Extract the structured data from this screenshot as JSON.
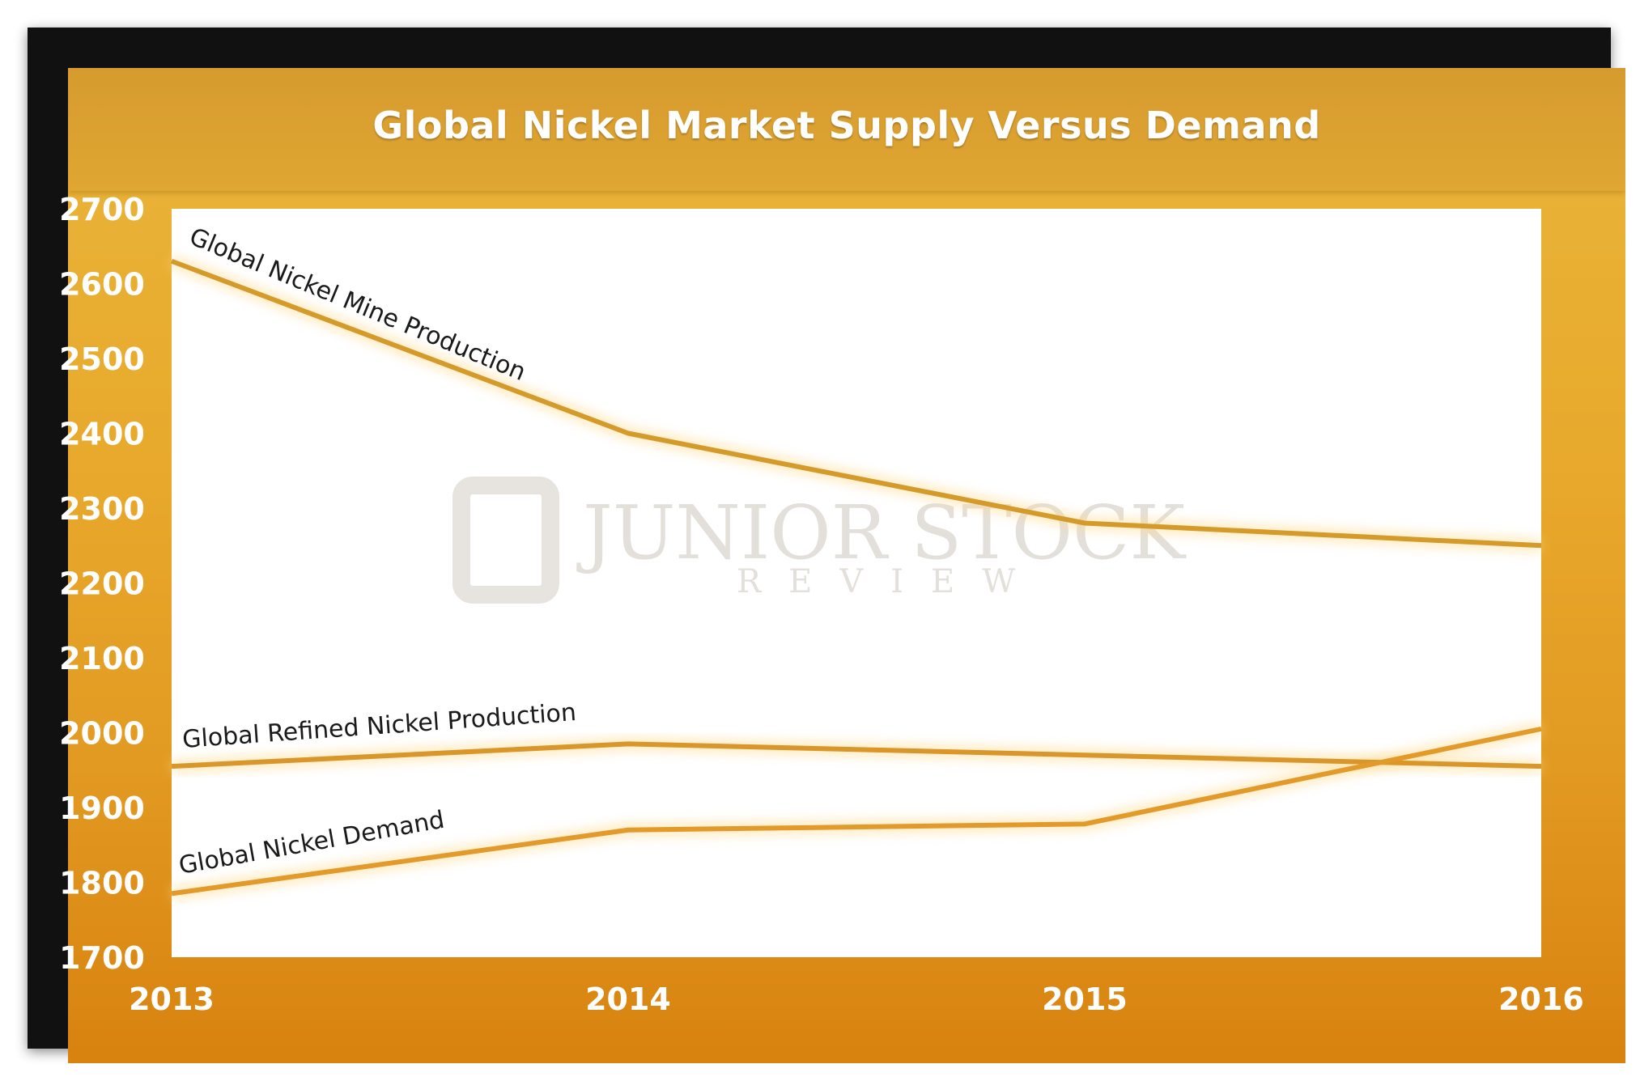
{
  "chart_data": {
    "type": "line",
    "title": "Global Nickel Market Supply Versus Demand",
    "x": [
      "2013",
      "2014",
      "2015",
      "2016"
    ],
    "ylim": [
      1700,
      2700
    ],
    "yticks": [
      "1700",
      "1800",
      "1900",
      "2000",
      "2100",
      "2200",
      "2300",
      "2400",
      "2500",
      "2600",
      "2700"
    ],
    "grid": false,
    "legend": "inline labels on lines",
    "series": [
      {
        "name": "Global Nickel Mine Production",
        "values": [
          2630,
          2400,
          2280,
          2250
        ],
        "color": "#d49a2a"
      },
      {
        "name": "Global Refined Nickel Production",
        "values": [
          1955,
          1985,
          1970,
          1955
        ],
        "color": "#d9962a"
      },
      {
        "name": "Global Nickel Demand",
        "values": [
          1785,
          1870,
          1878,
          2005
        ],
        "color": "#e29a2a"
      }
    ]
  },
  "watermark": {
    "main": "JUNIOR STOCK",
    "sub": "REVIEW"
  },
  "colors": {
    "frame": "#111111",
    "panel": "#e8a92c",
    "plot_bg": "#ffffff"
  }
}
